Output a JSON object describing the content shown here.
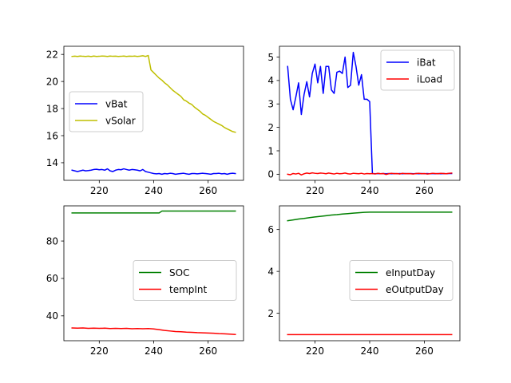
{
  "chart_data": [
    {
      "type": "line",
      "title": "",
      "xlabel": "",
      "ylabel": "",
      "xlim": [
        207,
        273
      ],
      "ylim": [
        12.7,
        22.6
      ],
      "xticks": [
        220,
        240,
        260
      ],
      "yticks": [
        14,
        16,
        18,
        20,
        22
      ],
      "legend_position": "center-left",
      "series": [
        {
          "name": "vBat",
          "color": "#0000ff",
          "x": [
            210,
            211,
            212,
            213,
            214,
            215,
            216,
            217,
            218,
            219,
            220,
            221,
            222,
            223,
            224,
            225,
            226,
            227,
            228,
            229,
            230,
            231,
            232,
            233,
            234,
            235,
            236,
            237,
            238,
            239,
            240,
            241,
            242,
            243,
            244,
            245,
            246,
            247,
            248,
            249,
            250,
            251,
            252,
            253,
            254,
            255,
            256,
            257,
            258,
            259,
            260,
            261,
            262,
            263,
            264,
            265,
            266,
            267,
            268,
            269,
            270
          ],
          "values": [
            13.45,
            13.4,
            13.35,
            13.4,
            13.45,
            13.4,
            13.42,
            13.45,
            13.5,
            13.52,
            13.48,
            13.5,
            13.45,
            13.55,
            13.4,
            13.35,
            13.45,
            13.5,
            13.48,
            13.55,
            13.5,
            13.45,
            13.5,
            13.48,
            13.45,
            13.4,
            13.5,
            13.35,
            13.3,
            13.25,
            13.2,
            13.18,
            13.2,
            13.15,
            13.2,
            13.18,
            13.22,
            13.2,
            13.15,
            13.18,
            13.2,
            13.22,
            13.18,
            13.15,
            13.2,
            13.2,
            13.18,
            13.2,
            13.22,
            13.2,
            13.18,
            13.15,
            13.2,
            13.2,
            13.22,
            13.18,
            13.2,
            13.15,
            13.2,
            13.22,
            13.2
          ]
        },
        {
          "name": "vSolar",
          "color": "#bfbf00",
          "x": [
            210,
            211,
            212,
            213,
            214,
            215,
            216,
            217,
            218,
            219,
            220,
            221,
            222,
            223,
            224,
            225,
            226,
            227,
            228,
            229,
            230,
            231,
            232,
            233,
            234,
            235,
            236,
            237,
            238,
            239,
            240,
            241,
            242,
            243,
            244,
            245,
            246,
            247,
            248,
            249,
            250,
            251,
            252,
            253,
            254,
            255,
            256,
            257,
            258,
            259,
            260,
            261,
            262,
            263,
            264,
            265,
            266,
            267,
            268,
            269,
            270
          ],
          "values": [
            21.85,
            21.87,
            21.85,
            21.88,
            21.86,
            21.85,
            21.87,
            21.84,
            21.88,
            21.85,
            21.86,
            21.88,
            21.87,
            21.85,
            21.88,
            21.86,
            21.87,
            21.85,
            21.86,
            21.88,
            21.85,
            21.87,
            21.86,
            21.88,
            21.85,
            21.87,
            21.9,
            21.85,
            21.92,
            20.85,
            20.65,
            20.45,
            20.25,
            20.1,
            19.9,
            19.75,
            19.55,
            19.35,
            19.2,
            19.05,
            18.9,
            18.65,
            18.55,
            18.4,
            18.3,
            18.1,
            17.95,
            17.8,
            17.6,
            17.5,
            17.35,
            17.2,
            17.05,
            16.95,
            16.85,
            16.75,
            16.6,
            16.5,
            16.4,
            16.3,
            16.25
          ]
        }
      ]
    },
    {
      "type": "line",
      "title": "",
      "xlabel": "",
      "ylabel": "",
      "xlim": [
        207,
        273
      ],
      "ylim": [
        -0.26,
        5.46
      ],
      "xticks": [
        220,
        240,
        260
      ],
      "yticks": [
        0,
        1,
        2,
        3,
        4,
        5
      ],
      "legend_position": "upper-right",
      "series": [
        {
          "name": "iBat",
          "color": "#0000ff",
          "x": [
            210,
            211,
            212,
            213,
            214,
            215,
            216,
            217,
            218,
            219,
            220,
            221,
            222,
            223,
            224,
            225,
            226,
            227,
            228,
            229,
            230,
            231,
            232,
            233,
            234,
            235,
            236,
            237,
            238,
            239,
            240,
            241,
            242,
            243,
            244,
            245,
            246,
            247,
            248,
            249,
            250,
            251,
            252,
            253,
            254,
            255,
            256,
            257,
            258,
            259,
            260,
            261,
            262,
            263,
            264,
            265,
            266,
            267,
            268,
            269,
            270
          ],
          "values": [
            4.6,
            3.2,
            2.75,
            3.3,
            3.9,
            2.55,
            3.4,
            3.95,
            3.3,
            4.3,
            4.7,
            3.9,
            4.6,
            3.45,
            4.6,
            4.6,
            3.6,
            3.45,
            4.35,
            4.4,
            4.3,
            5.0,
            3.7,
            3.8,
            5.2,
            4.6,
            3.8,
            4.25,
            3.2,
            3.2,
            3.1,
            0.03,
            0.02,
            0.03,
            0.02,
            0.03,
            0.02,
            0.03,
            0.02,
            0.03,
            0.02,
            0.03,
            0.02,
            0.03,
            0.02,
            0.03,
            0.02,
            0.03,
            0.02,
            0.03,
            0.02,
            0.03,
            0.02,
            0.03,
            0.02,
            0.03,
            0.02,
            0.03,
            0.02,
            0.03,
            0.03
          ]
        },
        {
          "name": "iLoad",
          "color": "#ff0000",
          "x": [
            210,
            211,
            212,
            213,
            214,
            215,
            216,
            217,
            218,
            219,
            220,
            221,
            222,
            223,
            224,
            225,
            226,
            227,
            228,
            229,
            230,
            231,
            232,
            233,
            234,
            235,
            236,
            237,
            238,
            239,
            240,
            241,
            242,
            243,
            244,
            245,
            246,
            247,
            248,
            249,
            250,
            251,
            252,
            253,
            254,
            255,
            256,
            257,
            258,
            259,
            260,
            261,
            262,
            263,
            264,
            265,
            266,
            267,
            268,
            269,
            270
          ],
          "values": [
            0.0,
            -0.02,
            0.03,
            0.01,
            0.04,
            -0.03,
            0.02,
            0.05,
            0.03,
            0.06,
            0.04,
            0.03,
            0.05,
            0.04,
            0.02,
            0.05,
            0.03,
            0.01,
            0.04,
            0.02,
            0.03,
            0.05,
            0.02,
            0.01,
            0.04,
            0.03,
            0.02,
            0.04,
            0.01,
            0.03,
            0.02,
            0.03,
            0.01,
            0.04,
            0.02,
            0.03,
            -0.01,
            0.02,
            0.04,
            0.02,
            0.03,
            0.01,
            0.04,
            0.02,
            0.03,
            0.02,
            0.01,
            0.03,
            0.04,
            0.02,
            0.03,
            0.01,
            0.02,
            0.04,
            0.03,
            0.02,
            0.04,
            0.03,
            0.02,
            0.04,
            0.05
          ]
        }
      ]
    },
    {
      "type": "line",
      "title": "",
      "xlabel": "",
      "ylabel": "",
      "xlim": [
        207,
        273
      ],
      "ylim": [
        26.7,
        98.8
      ],
      "xticks": [
        220,
        240,
        260
      ],
      "yticks": [
        40,
        60,
        80
      ],
      "legend_position": "center-right",
      "series": [
        {
          "name": "SOC",
          "color": "#008000",
          "x": [
            210,
            220,
            230,
            240,
            242,
            243,
            250,
            260,
            270
          ],
          "values": [
            95,
            95,
            95,
            95,
            95,
            96,
            96,
            96,
            96
          ]
        },
        {
          "name": "tempInt",
          "color": "#ff0000",
          "x": [
            210,
            212,
            214,
            216,
            218,
            220,
            222,
            224,
            226,
            228,
            230,
            232,
            234,
            236,
            238,
            240,
            242,
            244,
            246,
            248,
            250,
            252,
            254,
            256,
            258,
            260,
            262,
            264,
            266,
            268,
            270
          ],
          "values": [
            33.5,
            33.4,
            33.5,
            33.3,
            33.4,
            33.3,
            33.4,
            33.2,
            33.3,
            33.2,
            33.3,
            33.1,
            33.2,
            33.1,
            33.2,
            33.0,
            32.6,
            32.2,
            31.9,
            31.6,
            31.5,
            31.3,
            31.2,
            31.0,
            30.9,
            30.8,
            30.7,
            30.5,
            30.4,
            30.2,
            30.0
          ]
        }
      ]
    },
    {
      "type": "line",
      "title": "",
      "xlabel": "",
      "ylabel": "",
      "xlim": [
        207,
        273
      ],
      "ylim": [
        0.69,
        7.13
      ],
      "xticks": [
        220,
        240,
        260
      ],
      "yticks": [
        2,
        4,
        6
      ],
      "legend_position": "center-right",
      "series": [
        {
          "name": "eInputDay",
          "color": "#008000",
          "x": [
            210,
            212,
            214,
            216,
            218,
            220,
            222,
            224,
            226,
            228,
            230,
            232,
            234,
            236,
            238,
            240,
            245,
            250,
            255,
            260,
            265,
            270
          ],
          "values": [
            6.42,
            6.46,
            6.5,
            6.53,
            6.57,
            6.6,
            6.63,
            6.66,
            6.69,
            6.71,
            6.74,
            6.76,
            6.78,
            6.8,
            6.82,
            6.83,
            6.83,
            6.83,
            6.83,
            6.83,
            6.83,
            6.83
          ]
        },
        {
          "name": "eOutputDay",
          "color": "#ff0000",
          "x": [
            210,
            220,
            230,
            240,
            250,
            260,
            270
          ],
          "values": [
            0.98,
            0.98,
            0.98,
            0.98,
            0.98,
            0.98,
            0.98
          ]
        }
      ]
    }
  ]
}
